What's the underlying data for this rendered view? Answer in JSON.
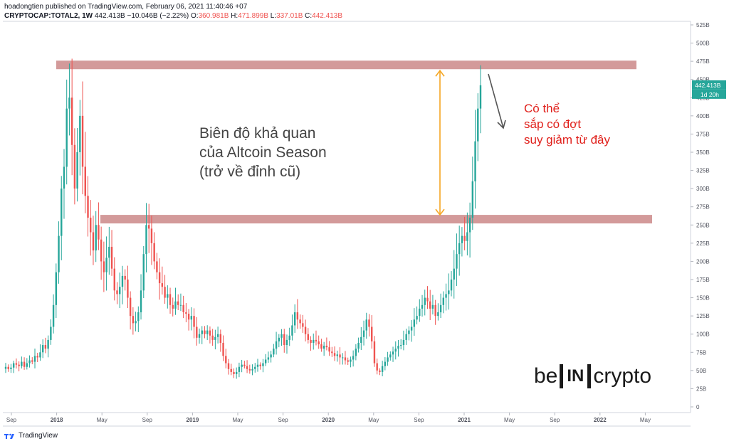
{
  "header": {
    "line1": "hoadongtien published on TradingView.com, February 06, 2021 11:40:46 +07",
    "symbol": "CRYPTOCAP:TOTAL2, 1W",
    "last": "442.413B",
    "change": "−10.046B (−2.22%)",
    "o_label": "O:",
    "o_val": "360.981B",
    "h_label": "H:",
    "h_val": "471.899B",
    "l_label": "L:",
    "l_val": "337.01B",
    "c_label": "C:",
    "c_val": "442.413B"
  },
  "footer": {
    "brand": "TradingView"
  },
  "watermark": {
    "left": "be",
    "box": "IN",
    "right": "crypto"
  },
  "colors": {
    "up": "#26a69a",
    "down": "#ef5350",
    "zone": "#d39a9a",
    "arrow_range": "#f5a623",
    "arrow_down": "#555555",
    "note_red": "#e0201b"
  },
  "chart_data": {
    "type": "candlestick",
    "title": "",
    "ylim": [
      0,
      525
    ],
    "y_unit": "B",
    "y_ticks": [
      "0",
      "25B",
      "50B",
      "75B",
      "100B",
      "125B",
      "150B",
      "175B",
      "200B",
      "225B",
      "250B",
      "275B",
      "300B",
      "325B",
      "350B",
      "375B",
      "400B",
      "425B",
      "450B",
      "475B",
      "500B",
      "525B"
    ],
    "x_labels": [
      "Sep",
      "2018",
      "May",
      "Sep",
      "2019",
      "May",
      "Sep",
      "2020",
      "May",
      "Sep",
      "2021",
      "May",
      "Sep",
      "2022",
      "May"
    ],
    "price_label": "442.413B",
    "countdown_label": "1d 20h",
    "zones": [
      {
        "name": "resistance",
        "level": 470
      },
      {
        "name": "support",
        "level": 258
      }
    ],
    "annotation_main": [
      "Biên độ khả quan",
      "của Altcoin Season",
      "(trở về đỉnh cũ)"
    ],
    "annotation_right": [
      "Có thể",
      "sắp có đợt",
      "suy giảm từ đây"
    ],
    "weekly_close": [
      55,
      52,
      54,
      60,
      58,
      56,
      62,
      55,
      60,
      64,
      62,
      70,
      68,
      75,
      85,
      80,
      92,
      110,
      140,
      185,
      235,
      300,
      330,
      410,
      425,
      360,
      300,
      350,
      400,
      330,
      290,
      260,
      240,
      215,
      250,
      230,
      200,
      185,
      205,
      220,
      190,
      160,
      155,
      165,
      180,
      175,
      150,
      125,
      115,
      118,
      130,
      160,
      210,
      250,
      245,
      225,
      200,
      185,
      170,
      165,
      150,
      155,
      140,
      135,
      145,
      140,
      140,
      130,
      128,
      120,
      125,
      110,
      95,
      100,
      105,
      100,
      105,
      98,
      92,
      96,
      100,
      88,
      70,
      60,
      52,
      48,
      45,
      48,
      55,
      58,
      56,
      52,
      50,
      52,
      55,
      58,
      56,
      60,
      65,
      68,
      72,
      80,
      90,
      95,
      100,
      85,
      92,
      98,
      112,
      130,
      120,
      115,
      110,
      100,
      92,
      88,
      92,
      90,
      86,
      80,
      84,
      82,
      76,
      74,
      70,
      72,
      68,
      68,
      64,
      62,
      65,
      70,
      80,
      88,
      96,
      105,
      120,
      110,
      90,
      60,
      50,
      48,
      56,
      62,
      68,
      72,
      76,
      80,
      84,
      85,
      92,
      100,
      105,
      110,
      120,
      125,
      135,
      140,
      150,
      145,
      135,
      140,
      125,
      130,
      140,
      150,
      155,
      160,
      175,
      190,
      210,
      225,
      235,
      228,
      240,
      260,
      310,
      365,
      410,
      442
    ]
  }
}
